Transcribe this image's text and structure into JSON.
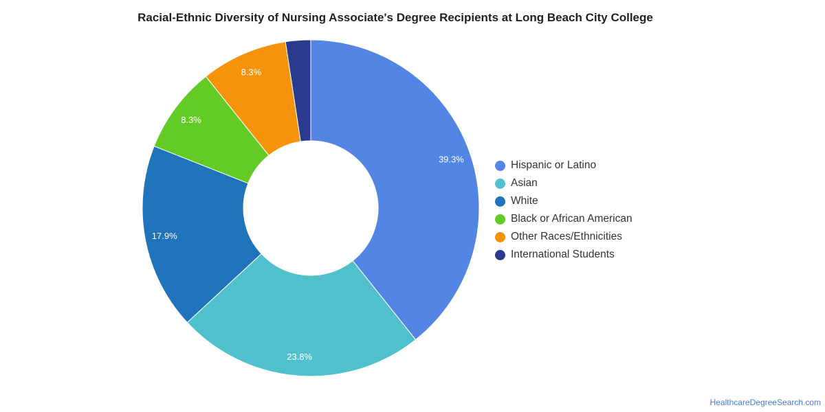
{
  "chart_data": {
    "type": "pie",
    "title": "Racial-Ethnic Diversity of Nursing Associate's Degree Recipients at Long Beach City College",
    "donut": true,
    "legend_position": "right",
    "slices": [
      {
        "label": "Hispanic or Latino",
        "value": 39.3,
        "display": "39.3%",
        "color": "#5386e4"
      },
      {
        "label": "Asian",
        "value": 23.8,
        "display": "23.8%",
        "color": "#50c0cc"
      },
      {
        "label": "White",
        "value": 17.9,
        "display": "17.9%",
        "color": "#1f74bb"
      },
      {
        "label": "Black or African American",
        "value": 8.3,
        "display": "8.3%",
        "color": "#62cc25"
      },
      {
        "label": "Other Races/Ethnicities",
        "value": 8.3,
        "display": "8.3%",
        "color": "#f7930b"
      },
      {
        "label": "International Students",
        "value": 2.4,
        "display": "",
        "color": "#2b3a8f"
      }
    ]
  },
  "credit": "HealthcareDegreeSearch.com"
}
